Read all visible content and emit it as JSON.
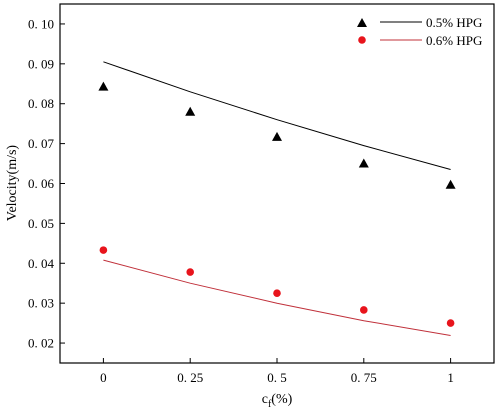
{
  "chart_data": {
    "type": "scatter",
    "xlabel_main": "c",
    "xlabel_sub": "f",
    "xlabel_unit": "(%)",
    "ylabel": "Velocity(m/s)",
    "xlim": [
      -0.125,
      1.125
    ],
    "ylim": [
      0.015,
      0.105
    ],
    "x_ticks": [
      0,
      0.25,
      0.5,
      0.75,
      1
    ],
    "x_tick_labels": [
      "0",
      "0. 25",
      "0. 5",
      "0. 75",
      "1"
    ],
    "y_ticks": [
      0.02,
      0.03,
      0.04,
      0.05,
      0.06,
      0.07,
      0.08,
      0.09,
      0.1
    ],
    "y_tick_labels": [
      "0. 02",
      "0. 03",
      "0. 04",
      "0. 05",
      "0. 06",
      "0. 07",
      "0. 08",
      "0. 09",
      "0. 10"
    ],
    "legend_position": "top-right",
    "series": [
      {
        "name": "0.5% HPG",
        "marker": "triangle",
        "marker_color": "#000000",
        "line_color": "#000000",
        "x": [
          0,
          0.25,
          0.5,
          0.75,
          1
        ],
        "y": [
          0.0843,
          0.078,
          0.0717,
          0.065,
          0.0597
        ],
        "fit_x": [
          0,
          0.25,
          0.5,
          0.75,
          1
        ],
        "fit_y": [
          0.0905,
          0.083,
          0.076,
          0.0695,
          0.0635
        ]
      },
      {
        "name": "0.6% HPG",
        "marker": "circle",
        "marker_color": "#e8141c",
        "line_color": "#c0303a",
        "x": [
          0,
          0.25,
          0.5,
          0.75,
          1
        ],
        "y": [
          0.0433,
          0.0378,
          0.0325,
          0.0283,
          0.025
        ],
        "fit_x": [
          0,
          0.25,
          0.5,
          0.75,
          1
        ],
        "fit_y": [
          0.0408,
          0.035,
          0.03,
          0.0256,
          0.0219
        ]
      }
    ]
  }
}
